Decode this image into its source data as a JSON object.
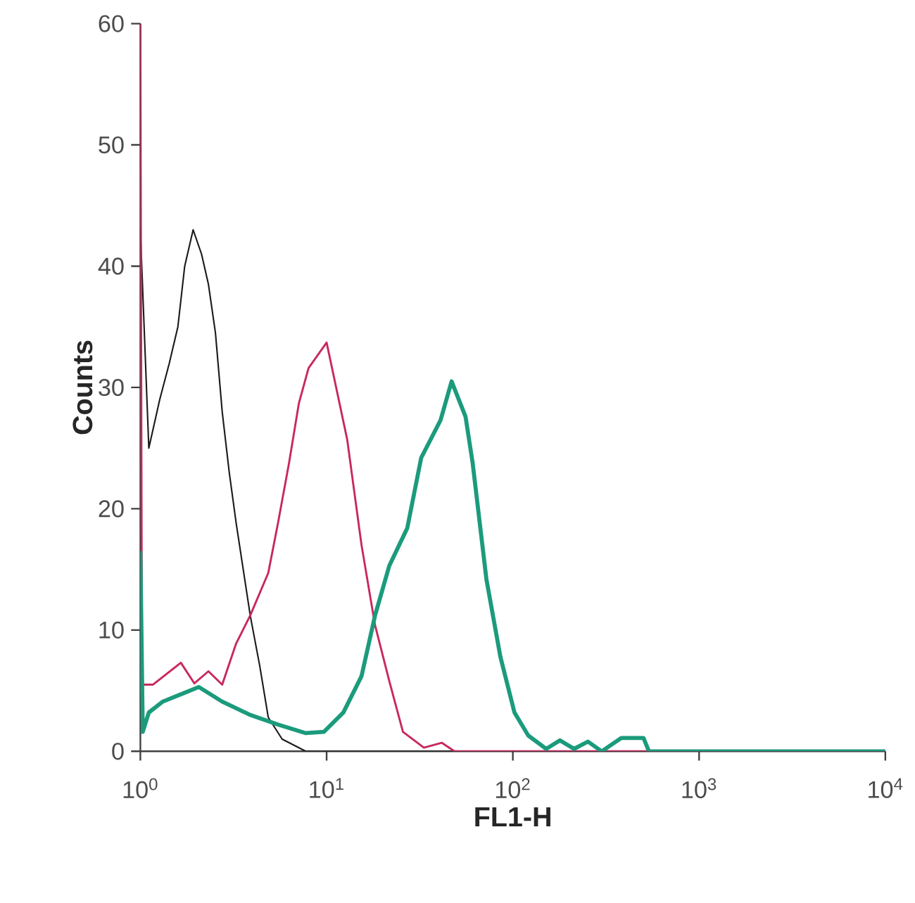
{
  "chart_data": {
    "type": "line",
    "xlabel": "FL1-H",
    "ylabel": "Counts",
    "log": "x",
    "xlim": [
      1,
      10000
    ],
    "ylim": [
      0,
      60
    ],
    "xticks": [
      {
        "value": 1,
        "label": "10$^{0}$"
      },
      {
        "value": 10,
        "label": "10$^{1}$"
      },
      {
        "value": 100,
        "label": "10$^{2}$"
      },
      {
        "value": 1000,
        "label": "10$^{3}$"
      },
      {
        "value": 10000,
        "label": "10$^{4}$"
      }
    ],
    "yticks": [
      0,
      10,
      20,
      30,
      40,
      50,
      60
    ],
    "series": [
      {
        "color": "#1a1a1a",
        "x": [
          1.0,
          1.11,
          1.27,
          1.43,
          1.59,
          1.73,
          1.92,
          2.13,
          2.32,
          2.53,
          2.75,
          3.0,
          3.27,
          3.89,
          4.38,
          4.86,
          5.77,
          7.73,
          10000
        ],
        "values": [
          43,
          25,
          29,
          32,
          35,
          40,
          43,
          41,
          38.5,
          34.5,
          28,
          23,
          18.8,
          11.2,
          7,
          2.8,
          1,
          0,
          0
        ]
      },
      {
        "color": "#c8285f",
        "x": [
          1.0,
          1.02,
          1.17,
          1.65,
          1.95,
          2.32,
          2.75,
          3.27,
          3.89,
          4.86,
          5.48,
          6.29,
          7.1,
          8.0,
          10.0,
          10.9,
          12.9,
          15.4,
          18.2,
          21.7,
          25.7,
          33.3,
          41.6,
          48.6,
          10000
        ],
        "values": [
          60,
          5.5,
          5.5,
          7.3,
          5.6,
          6.6,
          5.5,
          8.9,
          11.2,
          14.7,
          18.8,
          23.8,
          28.7,
          31.6,
          33.7,
          31,
          25.7,
          17,
          10.4,
          5.8,
          1.6,
          0.3,
          0.7,
          0,
          0
        ]
      },
      {
        "color": "#1b9b7c",
        "x": [
          1.0,
          1.03,
          1.11,
          1.32,
          1.65,
          2.06,
          2.75,
          3.89,
          5.48,
          7.73,
          9.66,
          12.3,
          15.4,
          18.2,
          21.7,
          27.1,
          32.2,
          40.9,
          46.9,
          55.7,
          60.8,
          72.1,
          85.7,
          102,
          121,
          151,
          179,
          213,
          253,
          300,
          382,
          503,
          538,
          10000
        ],
        "values": [
          16.5,
          1.6,
          3.2,
          4.1,
          4.7,
          5.3,
          4.1,
          3,
          2.2,
          1.5,
          1.6,
          3.2,
          6.2,
          11.2,
          15.3,
          18.4,
          24.2,
          27.3,
          30.5,
          27.6,
          23.8,
          14.2,
          7.8,
          3.2,
          1.3,
          0.2,
          0.9,
          0.2,
          0.8,
          0,
          1.1,
          1.1,
          0,
          0
        ]
      }
    ]
  }
}
